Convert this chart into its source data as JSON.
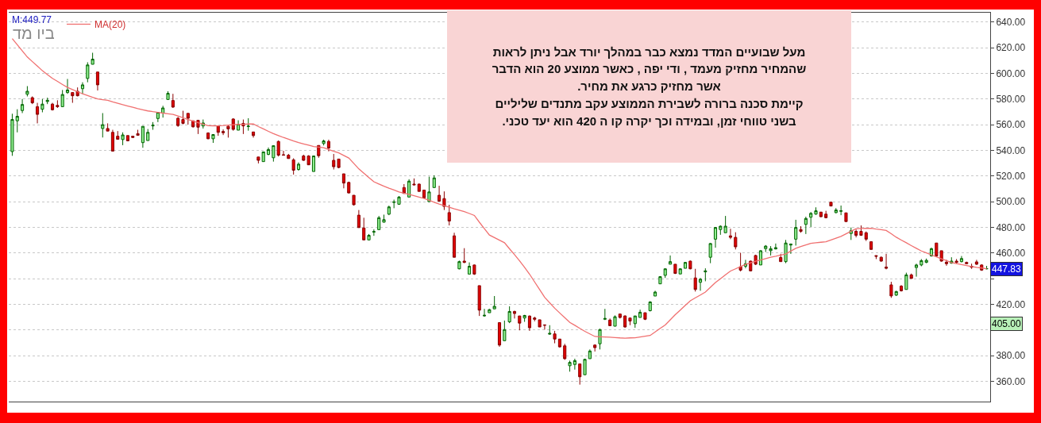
{
  "chart_data": {
    "type": "candlestick",
    "title": "ביו מד",
    "annotations": [
      "M:449.77",
      "מעל שבועיים המדד נמצא כבר במהלך יורד אבל ניתן לראות\nשהמחיר מחזיק מעמד , ודי יפה , כאשר ממוצע 20 הוא הדבר\nאשר מחזיק כרגע את מחיר.\nקיימת סכנה ברורה לשבירת הממוצע עקב מתנדים שליליים\nבשני טווחי זמן, ובמידה וכך יקרה קו ה 420 הוא יעד טכני.",
      {
        "text": "447.83",
        "y": 447.83
      },
      {
        "text": "405.00",
        "y": 405
      }
    ],
    "categories": [
      null,
      null,
      null,
      null,
      null,
      null,
      null,
      null,
      null,
      null,
      null,
      null,
      null,
      null,
      null,
      null,
      null,
      null,
      null,
      null,
      null,
      null,
      null,
      null,
      null,
      null,
      null,
      null,
      null,
      null,
      null,
      null,
      null,
      null,
      null,
      null,
      null,
      null,
      null,
      null,
      null,
      null,
      null,
      null,
      null,
      null,
      null,
      null,
      null,
      null,
      null,
      null,
      null,
      null,
      null,
      null,
      null,
      null,
      null,
      null,
      null,
      null,
      null,
      null,
      null,
      null,
      null,
      null,
      null,
      null,
      null,
      null,
      null,
      null,
      null,
      null,
      null,
      null,
      null,
      null,
      null,
      null,
      null,
      null,
      null,
      null,
      null,
      null,
      null,
      null,
      null,
      null,
      null,
      null,
      null,
      null,
      null,
      null,
      null,
      null,
      null,
      null,
      null,
      null,
      null,
      null,
      null,
      null,
      null,
      null,
      null,
      null,
      null,
      null,
      null,
      null,
      null,
      null,
      null,
      null,
      null,
      null,
      null,
      null,
      null,
      null,
      null,
      null,
      null,
      null,
      null,
      null,
      null,
      null,
      null,
      null,
      null,
      null,
      null,
      null,
      null,
      null,
      null,
      null,
      null,
      null,
      null,
      null,
      null,
      null,
      null,
      null,
      null,
      null,
      null,
      null,
      null,
      null,
      null,
      null,
      null,
      null,
      null,
      null,
      null,
      null,
      null,
      null,
      null,
      null,
      null,
      null,
      null,
      null,
      null,
      null,
      null,
      null,
      null,
      null,
      null,
      null,
      null,
      null,
      null,
      null,
      null,
      null,
      null,
      null,
      null,
      null,
      null,
      null,
      null
    ],
    "ohlc": [
      [
        539,
        568.5,
        535.7,
        564
      ],
      [
        563,
        572,
        554,
        566.5
      ],
      [
        571,
        580,
        569,
        575.7
      ],
      [
        583.7,
        590,
        582,
        586
      ],
      [
        581,
        582,
        576,
        577
      ],
      [
        574,
        577,
        561,
        568
      ],
      [
        572,
        580,
        569.6,
        576
      ],
      [
        578,
        581,
        576,
        579
      ],
      [
        576,
        577,
        571,
        571.6
      ],
      [
        575,
        579,
        573,
        574
      ],
      [
        574,
        587,
        574,
        583.5
      ],
      [
        585,
        595.6,
        584,
        587
      ],
      [
        585,
        585,
        577,
        582.5
      ],
      [
        586,
        589,
        582,
        582.5
      ],
      [
        588,
        593,
        584,
        591
      ],
      [
        596,
        608.6,
        593,
        606.5
      ],
      [
        607,
        616,
        607,
        611
      ],
      [
        601,
        601,
        586.6,
        591
      ],
      [
        557,
        569,
        550,
        560
      ],
      [
        557,
        561,
        555,
        555
      ],
      [
        554,
        556,
        539.4,
        539.4
      ],
      [
        551,
        555,
        548.6,
        548.6
      ],
      [
        548.4,
        554,
        544,
        552
      ],
      [
        551.5,
        551.5,
        547,
        547.4
      ],
      [
        551,
        551,
        549.6,
        550
      ],
      [
        553,
        556,
        551.7,
        551.7
      ],
      [
        546,
        558.7,
        542,
        558.7
      ],
      [
        547.6,
        556.6,
        547.6,
        554
      ],
      [
        559,
        562,
        556,
        559.7
      ],
      [
        564.8,
        569.6,
        562,
        569.6
      ],
      [
        569,
        574.7,
        565.5,
        573
      ],
      [
        579.6,
        586,
        579.6,
        584.4
      ],
      [
        578.8,
        584,
        573,
        573.7
      ],
      [
        565,
        566,
        558.3,
        559.3
      ],
      [
        564,
        570.8,
        560.3,
        561
      ],
      [
        568.8,
        568.8,
        560,
        565
      ],
      [
        563,
        563,
        557.7,
        558.3
      ],
      [
        563.4,
        563.4,
        552.7,
        558
      ],
      [
        559,
        564,
        557,
        561.3
      ],
      [
        553.5,
        554,
        548.7,
        549
      ],
      [
        549,
        552.3,
        545.8,
        552.3
      ],
      [
        559,
        559,
        551.3,
        554
      ],
      [
        554.7,
        556.3,
        551.9,
        553.7
      ],
      [
        558.7,
        559.3,
        549.9,
        556.7
      ],
      [
        564.4,
        565,
        555.3,
        556.3
      ],
      [
        555.7,
        563.4,
        555.7,
        560.3
      ],
      [
        561,
        564,
        552.7,
        559
      ],
      [
        558.5,
        565,
        555.3,
        558.8
      ],
      [
        554.3,
        554.3,
        549.9,
        551.5
      ],
      [
        534.8,
        534.8,
        529.8,
        532.2
      ],
      [
        531.2,
        538.8,
        531.2,
        538.8
      ],
      [
        536.8,
        542.2,
        536.2,
        540.6
      ],
      [
        534.2,
        543.6,
        531.2,
        543.6
      ],
      [
        546.9,
        547.7,
        535.2,
        536.2
      ],
      [
        536.6,
        539.6,
        536.2,
        536.2
      ],
      [
        536.2,
        537.2,
        533.6,
        533.6
      ],
      [
        532.6,
        533.8,
        521.1,
        524.5
      ],
      [
        525.1,
        530.6,
        524.1,
        529.2
      ],
      [
        535.6,
        536.6,
        531.8,
        532.2
      ],
      [
        535.6,
        536.2,
        528.7,
        528.7
      ],
      [
        523.5,
        535.6,
        523.5,
        535.6
      ],
      [
        543.8,
        543.8,
        534.2,
        535.8
      ],
      [
        545.3,
        548.3,
        543.8,
        547.3
      ],
      [
        546.9,
        548.3,
        539.2,
        541.8
      ],
      [
        532.2,
        537.2,
        525.1,
        527.2
      ],
      [
        533.2,
        533.2,
        526,
        526.6
      ],
      [
        521.7,
        521.7,
        510.4,
        514.5
      ],
      [
        515,
        515.6,
        506.4,
        506.8
      ],
      [
        505,
        505,
        497,
        497.6
      ],
      [
        489.5,
        493.5,
        479.8,
        479.8
      ],
      [
        479.5,
        487.5,
        470.2,
        470.2
      ],
      [
        470.2,
        474.8,
        470.2,
        473.8
      ],
      [
        476.3,
        478.4,
        473.4,
        476.7
      ],
      [
        478.2,
        488.9,
        478.2,
        487.5
      ],
      [
        484,
        489.9,
        483.9,
        486
      ],
      [
        490.3,
        496.9,
        489.5,
        495.9
      ],
      [
        499.4,
        501.6,
        494.9,
        499.8
      ],
      [
        498,
        504.4,
        497.6,
        503.6
      ],
      [
        511,
        513.7,
        506.4,
        506.4
      ],
      [
        503.6,
        517.5,
        503.6,
        516
      ],
      [
        513.7,
        518.1,
        513.1,
        513.1
      ],
      [
        513.7,
        514.1,
        508,
        508
      ],
      [
        509,
        509,
        502.4,
        503
      ],
      [
        500,
        519.5,
        500,
        507.6
      ],
      [
        511,
        520.5,
        511,
        518.5
      ],
      [
        505,
        512.4,
        500,
        500.4
      ],
      [
        502.4,
        508,
        493.5,
        496.3
      ],
      [
        491.5,
        497.6,
        481.5,
        484.9
      ],
      [
        473.4,
        475.8,
        456.7,
        456.7
      ],
      [
        447.7,
        454.1,
        447.3,
        453.3
      ],
      [
        453.7,
        463.8,
        452.1,
        452.7
      ],
      [
        443.6,
        452.7,
        443.6,
        449.7
      ],
      [
        450.7,
        451,
        443,
        443.6
      ],
      [
        434.6,
        434.6,
        411,
        415.5
      ],
      [
        411,
        416.5,
        410.4,
        411.5
      ],
      [
        413.5,
        416.5,
        413.5,
        415.9
      ],
      [
        416.5,
        426.5,
        416.5,
        418.5
      ],
      [
        405.8,
        405.8,
        387,
        388.3
      ],
      [
        391.7,
        407.4,
        391.7,
        400.4
      ],
      [
        406.4,
        418.5,
        405.4,
        414.5
      ],
      [
        414.5,
        415.1,
        409,
        412.9
      ],
      [
        411,
        411,
        399.8,
        405.4
      ],
      [
        409.4,
        411.8,
        406.4,
        411.4
      ],
      [
        410.9,
        411.4,
        399.4,
        401.8
      ],
      [
        409.4,
        410.4,
        406.8,
        408.4
      ],
      [
        408,
        408,
        402.4,
        402.4
      ],
      [
        404,
        404.4,
        400.4,
        403.8
      ],
      [
        396.8,
        403.8,
        396.4,
        397.4
      ],
      [
        397,
        399.4,
        389.7,
        393
      ],
      [
        393,
        393,
        386.3,
        386.9
      ],
      [
        387.7,
        389.3,
        376.8,
        377.7
      ],
      [
        372.2,
        376.2,
        367.6,
        374.8
      ],
      [
        373.2,
        377.7,
        369.2,
        376.2
      ],
      [
        373.6,
        373.6,
        357.5,
        363.6
      ],
      [
        365.2,
        377.7,
        365.2,
        377.2
      ],
      [
        377.7,
        384.9,
        377.7,
        383.7
      ],
      [
        388.3,
        388.9,
        383.3,
        386.3
      ],
      [
        389.3,
        401,
        384.9,
        400.4
      ],
      [
        408.4,
        416.5,
        407.8,
        409
      ],
      [
        407.8,
        409,
        403.4,
        403.4
      ],
      [
        403,
        411.4,
        403,
        410.4
      ],
      [
        412.5,
        412.5,
        409,
        409.8
      ],
      [
        411,
        411.4,
        401.8,
        402.4
      ],
      [
        409.4,
        409.4,
        403.8,
        407
      ],
      [
        405,
        411,
        401.8,
        411
      ],
      [
        409.8,
        415.9,
        409.8,
        413.9
      ],
      [
        413.5,
        413.5,
        407.8,
        408.4
      ],
      [
        415.1,
        422.5,
        414.5,
        421.9
      ],
      [
        426.5,
        430.6,
        426.5,
        429.6
      ],
      [
        436,
        442,
        436,
        441.6
      ],
      [
        442.6,
        448.1,
        440.6,
        447.7
      ],
      [
        451.3,
        458.1,
        451.3,
        453.3
      ],
      [
        451.3,
        451.3,
        443.7,
        444.1
      ],
      [
        443.7,
        448.1,
        443.7,
        447.7
      ],
      [
        448.1,
        452.7,
        448.1,
        452.7
      ],
      [
        453.7,
        454.1,
        447.3,
        447.7
      ],
      [
        440.6,
        447.7,
        430,
        431.6
      ],
      [
        437.2,
        440.6,
        430.6,
        439.6
      ],
      [
        445.3,
        448.1,
        438,
        446.1
      ],
      [
        456.7,
        467.8,
        452.1,
        467.4
      ],
      [
        470.8,
        480.3,
        464.2,
        479.9
      ],
      [
        478.3,
        481.5,
        474.2,
        480.9
      ],
      [
        475.8,
        488.9,
        475.8,
        480.9
      ],
      [
        473.4,
        478.9,
        470.8,
        472.2
      ],
      [
        472.2,
        476.2,
        462.8,
        464.8
      ],
      [
        449.3,
        460.2,
        445.7,
        446.7
      ],
      [
        449.7,
        454.7,
        448.1,
        451.7
      ],
      [
        453.7,
        454.1,
        445.7,
        446.1
      ],
      [
        458.1,
        458.7,
        450.7,
        451.3
      ],
      [
        450.7,
        462.2,
        450.7,
        461.8
      ],
      [
        463.4,
        466.2,
        460.8,
        465.4
      ],
      [
        461.8,
        465.4,
        458.1,
        463.4
      ],
      [
        463.2,
        467.4,
        462.8,
        464.2
      ],
      [
        456.5,
        459.4,
        453.3,
        453.3
      ],
      [
        453.3,
        470.2,
        452.1,
        467.8
      ],
      [
        466.2,
        467.4,
        459.4,
        467
      ],
      [
        470.8,
        485.9,
        465.8,
        479.9
      ],
      [
        478.3,
        480.9,
        475.8,
        476.9
      ],
      [
        482.3,
        488.3,
        474.8,
        486.9
      ],
      [
        487.9,
        491.9,
        480.3,
        490.9
      ],
      [
        490.3,
        495.6,
        489.9,
        492.9
      ],
      [
        491.9,
        491.9,
        487.9,
        488.3
      ],
      [
        490.3,
        492.9,
        487,
        487.5
      ],
      [
        499.6,
        499.6,
        496.6,
        496.6
      ],
      [
        491.5,
        495,
        490.9,
        493.5
      ],
      [
        492.5,
        497,
        489.5,
        492.9
      ],
      [
        491.3,
        491.3,
        484.5,
        484.5
      ],
      [
        475.2,
        479.9,
        470.2,
        477.4
      ],
      [
        476.9,
        478.3,
        472.2,
        473.8
      ],
      [
        476.9,
        481.5,
        473.4,
        473.8
      ],
      [
        475.8,
        476.8,
        469.4,
        470.8
      ],
      [
        468.8,
        468.8,
        462.8,
        462.8
      ],
      [
        458,
        458.1,
        455.3,
        457.5
      ],
      [
        456.7,
        457.3,
        453.3,
        453.7
      ],
      [
        449.1,
        459.4,
        447.3,
        448.1
      ],
      [
        435.2,
        437.6,
        425.1,
        426.6
      ],
      [
        427.2,
        430.6,
        426.6,
        430
      ],
      [
        434.2,
        435,
        430,
        430.6
      ],
      [
        431.6,
        444.7,
        431.6,
        443
      ],
      [
        443,
        444,
        440.2,
        440.2
      ],
      [
        448.7,
        451.7,
        441.6,
        450.7
      ],
      [
        450.7,
        455.3,
        449.7,
        454.1
      ],
      [
        452.7,
        455.7,
        452.1,
        454.3
      ],
      [
        457.7,
        464.2,
        457.3,
        463.4
      ],
      [
        467.8,
        467.8,
        457.3,
        457.7
      ],
      [
        461.8,
        461.8,
        453.3,
        453.7
      ],
      [
        452.9,
        454.7,
        450.1,
        451.7
      ],
      [
        452.1,
        456.7,
        451.7,
        453.7
      ],
      [
        453.7,
        455.3,
        451.7,
        452.7
      ],
      [
        453.3,
        457.7,
        452.7,
        455.7
      ],
      [
        452.7,
        453.3,
        451.3,
        451.7
      ],
      [
        449.7,
        451.7,
        447.7,
        448.9
      ],
      [
        453.1,
        454.7,
        450.7,
        451.3
      ],
      [
        450.7,
        451.3,
        446.1,
        446.7
      ],
      [
        447.7,
        450,
        447.3,
        447.83
      ]
    ],
    "series": [
      {
        "name": "MA(20)",
        "type": "line",
        "color": "#f07070",
        "values": [
          627,
          622.2,
          617.5,
          612.7,
          609.1,
          605.6,
          602,
          599,
          596,
          593.7,
          591.3,
          589,
          587.3,
          585.7,
          584,
          582.7,
          581.3,
          580,
          579.5,
          579,
          577.8,
          576.7,
          575.5,
          574.5,
          573.5,
          572.5,
          571.6,
          570.7,
          570.1,
          569.6,
          569,
          568.5,
          568,
          566.7,
          565.4,
          564,
          562.7,
          561.5,
          560.4,
          559.2,
          559.1,
          559,
          559.3,
          559.7,
          560,
          560.2,
          560.3,
          560.5,
          560.6,
          558.5,
          556.7,
          554.8,
          553,
          551.5,
          550,
          548.7,
          547.3,
          546,
          545,
          544,
          543,
          542.5,
          542,
          540.7,
          539.3,
          538,
          536,
          534,
          529.8,
          525.5,
          522.2,
          518.8,
          515.5,
          513.8,
          512,
          510.5,
          509.1,
          507.6,
          506.6,
          505.7,
          504.7,
          503.6,
          502.5,
          501.1,
          499.6,
          498.2,
          496.9,
          495.7,
          494.4,
          493.3,
          492.2,
          490.8,
          489.3,
          484,
          479,
          474,
          472,
          470,
          468,
          463.3,
          458.7,
          454,
          448.8,
          443.5,
          437.5,
          431.5,
          425.5,
          421.3,
          417,
          413.3,
          409.7,
          406,
          403.7,
          401.3,
          399,
          397,
          395,
          394.8,
          394.6,
          394.4,
          394.2,
          393.9,
          393.7,
          393.9,
          394,
          394.6,
          395.2,
          395.8,
          398.5,
          401.3,
          404,
          408,
          412,
          415.6,
          419.2,
          422.8,
          425.1,
          427.3,
          429.6,
          433.3,
          437,
          440,
          443,
          446,
          447.7,
          449.5,
          451.2,
          452.4,
          453.6,
          454.6,
          455.7,
          456.7,
          457.5,
          458.4,
          459.2,
          461.5,
          463.7,
          465,
          466.3,
          467.6,
          468,
          468.4,
          468.8,
          470.2,
          471.6,
          473,
          475,
          477,
          479,
          479.1,
          479.2,
          479.3,
          478.7,
          478.2,
          477.6,
          475,
          472.3,
          470.1,
          468,
          465.8,
          463.7,
          461.6,
          460.1,
          458.5,
          457,
          455.5,
          454.1,
          452.6,
          451.8,
          451,
          450.3,
          449.5,
          448.8,
          448.3,
          447.7
        ]
      }
    ],
    "ylim": [
      344.3,
      647.2
    ],
    "yticks": [
      {
        "value": 360,
        "label": "360.00"
      },
      {
        "value": 380,
        "label": "380.00"
      },
      {
        "value": 400,
        "label": null
      },
      {
        "value": 420,
        "label": "420.00"
      },
      {
        "value": 440,
        "label": null
      },
      {
        "value": 460,
        "label": "460.00"
      },
      {
        "value": 480,
        "label": "480.00"
      },
      {
        "value": 500,
        "label": "500.00"
      },
      {
        "value": 520,
        "label": "520.00"
      },
      {
        "value": 540,
        "label": "540.00"
      },
      {
        "value": 560,
        "label": "560.00"
      },
      {
        "value": 580,
        "label": "580.00"
      },
      {
        "value": 600,
        "label": "600.00"
      },
      {
        "value": 620,
        "label": "620.00"
      },
      {
        "value": 640,
        "label": "640.00"
      }
    ],
    "grid": "y",
    "legend": "top left",
    "tick_labels": "y"
  }
}
